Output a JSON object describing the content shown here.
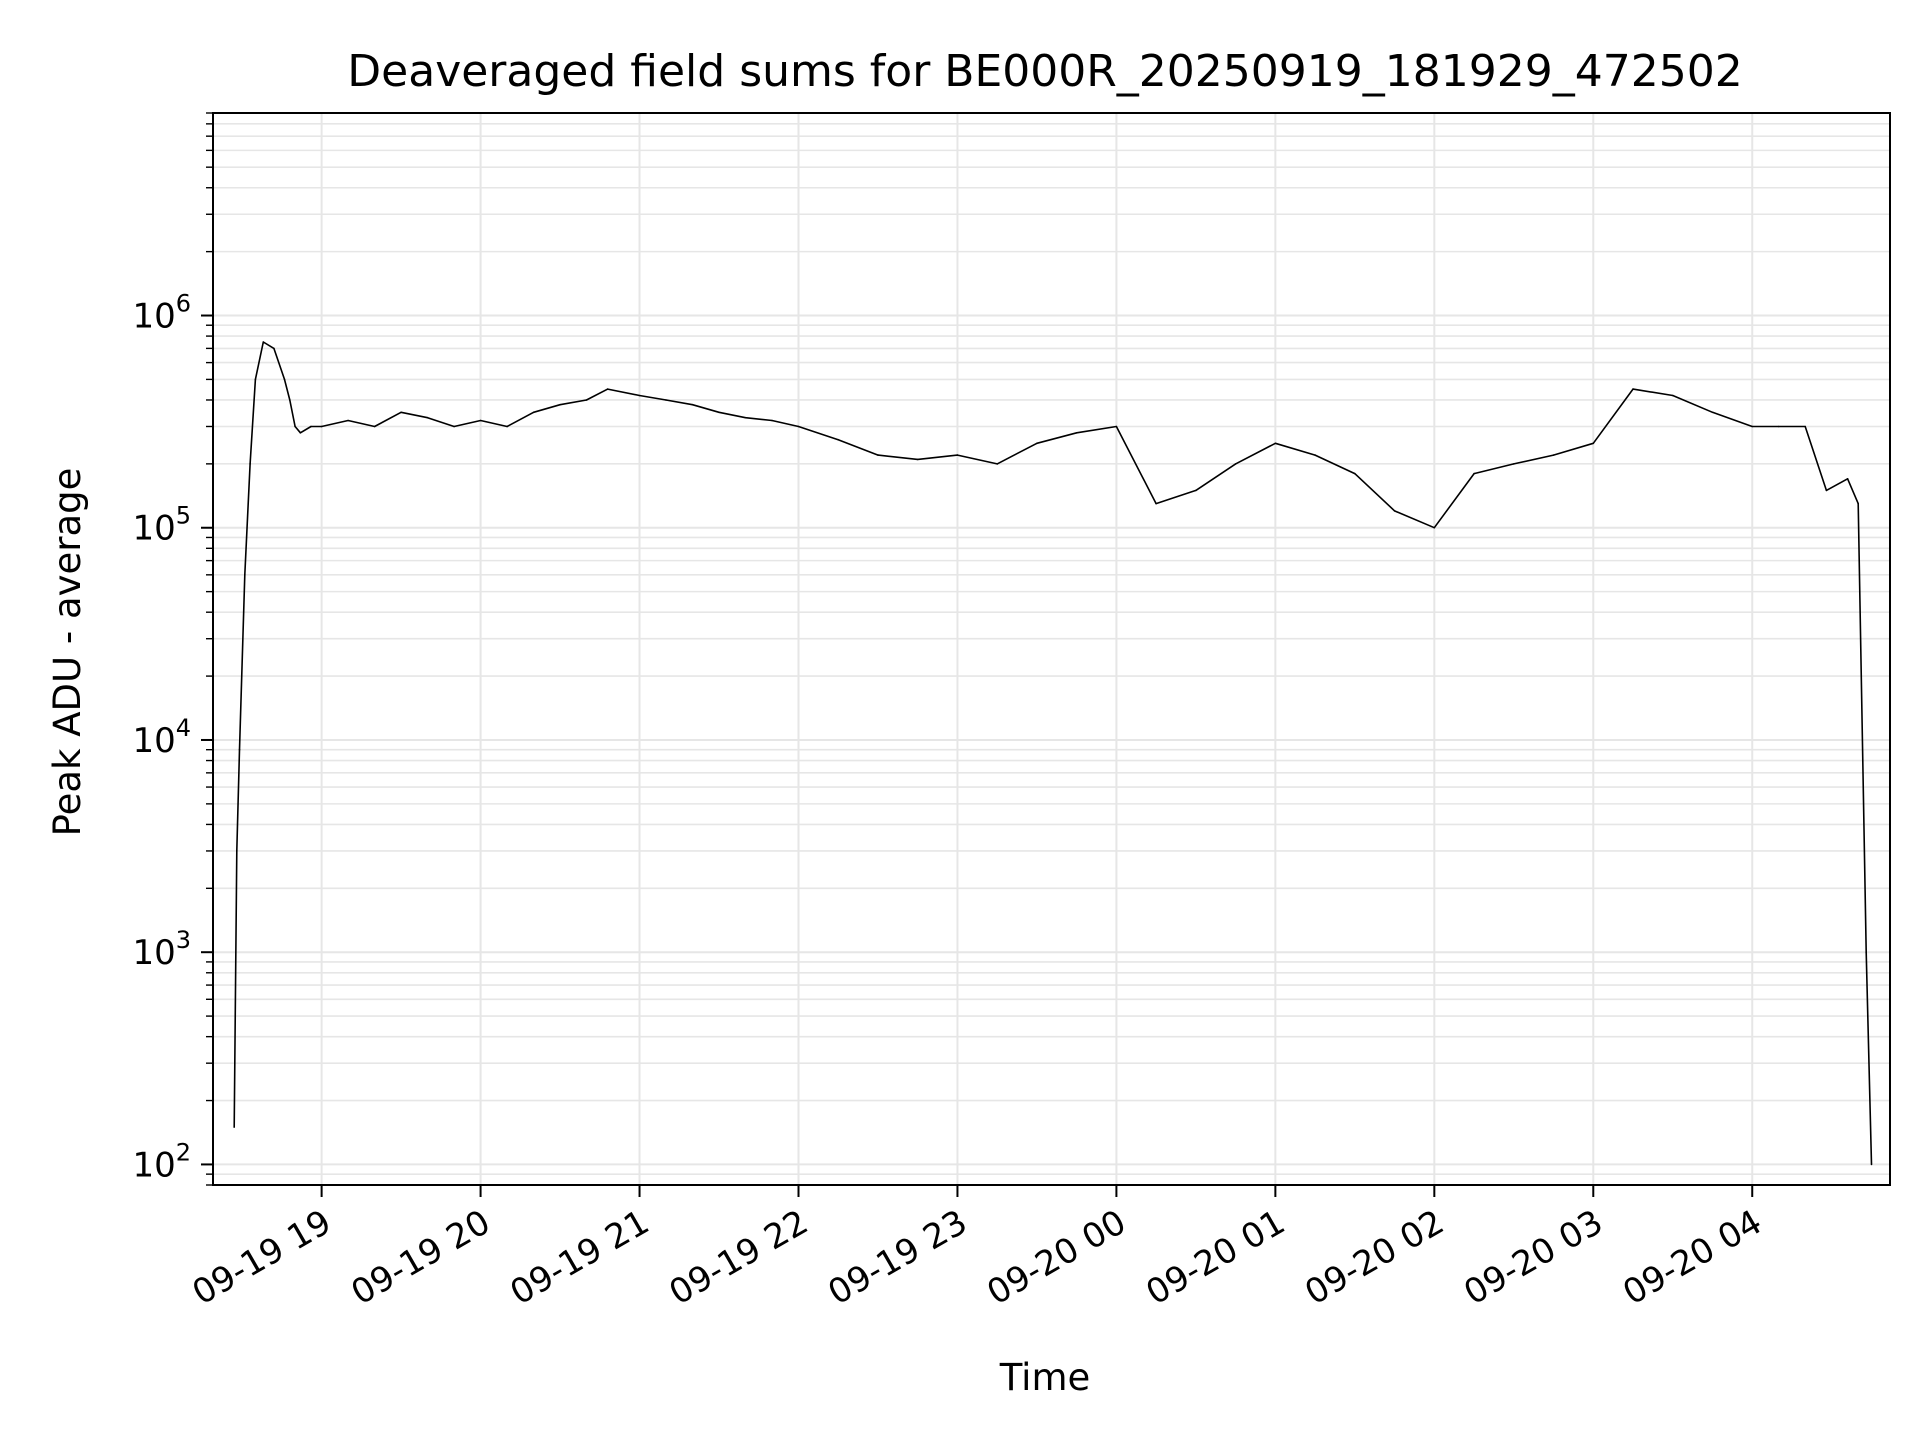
{
  "chart_data": {
    "type": "line",
    "title": "Deaveraged field sums for BE000R_20250919_181929_472502",
    "xlabel": "Time",
    "ylabel": "Peak ADU - average",
    "yscale": "log",
    "ylim": [
      80,
      9000000
    ],
    "xlim": [
      "2025-09-19 18:19",
      "2025-09-20 04:52"
    ],
    "grid": true,
    "line_color": "#000000",
    "grid_color": "#e6e6e6",
    "x_ticks": [
      {
        "t": "2025-09-19 19:00",
        "label": "09-19 19"
      },
      {
        "t": "2025-09-19 20:00",
        "label": "09-19 20"
      },
      {
        "t": "2025-09-19 21:00",
        "label": "09-19 21"
      },
      {
        "t": "2025-09-19 22:00",
        "label": "09-19 22"
      },
      {
        "t": "2025-09-19 23:00",
        "label": "09-19 23"
      },
      {
        "t": "2025-09-20 00:00",
        "label": "09-20 00"
      },
      {
        "t": "2025-09-20 01:00",
        "label": "09-20 01"
      },
      {
        "t": "2025-09-20 02:00",
        "label": "09-20 02"
      },
      {
        "t": "2025-09-20 03:00",
        "label": "09-20 03"
      },
      {
        "t": "2025-09-20 04:00",
        "label": "09-20 04"
      }
    ],
    "y_ticks": [
      {
        "value": 100,
        "base": "10",
        "exp": "2"
      },
      {
        "value": 1000,
        "base": "10",
        "exp": "3"
      },
      {
        "value": 10000,
        "base": "10",
        "exp": "4"
      },
      {
        "value": 100000,
        "base": "10",
        "exp": "5"
      },
      {
        "value": 1000000,
        "base": "10",
        "exp": "6"
      }
    ],
    "series": [
      {
        "x": [
          "2025-09-19 18:27",
          "2025-09-19 18:28",
          "2025-09-19 18:29",
          "2025-09-19 18:31",
          "2025-09-19 18:33",
          "2025-09-19 18:35",
          "2025-09-19 18:38",
          "2025-09-19 18:42",
          "2025-09-19 18:46",
          "2025-09-19 18:48",
          "2025-09-19 18:50",
          "2025-09-19 18:52",
          "2025-09-19 18:56",
          "2025-09-19 19:00",
          "2025-09-19 19:10",
          "2025-09-19 19:20",
          "2025-09-19 19:30",
          "2025-09-19 19:40",
          "2025-09-19 19:50",
          "2025-09-19 20:00",
          "2025-09-19 20:10",
          "2025-09-19 20:20",
          "2025-09-19 20:30",
          "2025-09-19 20:40",
          "2025-09-19 20:48",
          "2025-09-19 21:00",
          "2025-09-19 21:10",
          "2025-09-19 21:20",
          "2025-09-19 21:30",
          "2025-09-19 21:40",
          "2025-09-19 21:50",
          "2025-09-19 22:00",
          "2025-09-19 22:15",
          "2025-09-19 22:30",
          "2025-09-19 22:45",
          "2025-09-19 23:00",
          "2025-09-19 23:15",
          "2025-09-19 23:30",
          "2025-09-19 23:45",
          "2025-09-20 00:00",
          "2025-09-20 00:15",
          "2025-09-20 00:30",
          "2025-09-20 00:45",
          "2025-09-20 01:00",
          "2025-09-20 01:15",
          "2025-09-20 01:30",
          "2025-09-20 01:45",
          "2025-09-20 02:00",
          "2025-09-20 02:15",
          "2025-09-20 02:30",
          "2025-09-20 02:45",
          "2025-09-20 03:00",
          "2025-09-20 03:15",
          "2025-09-20 03:30",
          "2025-09-20 03:45",
          "2025-09-20 04:00",
          "2025-09-20 04:10",
          "2025-09-20 04:20",
          "2025-09-20 04:28",
          "2025-09-20 04:36",
          "2025-09-20 04:40",
          "2025-09-20 04:43",
          "2025-09-20 04:45"
        ],
        "y": [
          150,
          3000,
          9000,
          60000,
          200000,
          500000,
          750000,
          700000,
          500000,
          400000,
          300000,
          280000,
          300000,
          300000,
          320000,
          300000,
          350000,
          330000,
          300000,
          320000,
          300000,
          350000,
          380000,
          400000,
          450000,
          420000,
          400000,
          380000,
          350000,
          330000,
          320000,
          300000,
          260000,
          220000,
          210000,
          220000,
          200000,
          250000,
          280000,
          300000,
          130000,
          150000,
          200000,
          250000,
          220000,
          180000,
          120000,
          100000,
          180000,
          200000,
          220000,
          250000,
          450000,
          420000,
          350000,
          300000,
          300000,
          300000,
          150000,
          170000,
          130000,
          1000,
          100
        ]
      }
    ]
  }
}
